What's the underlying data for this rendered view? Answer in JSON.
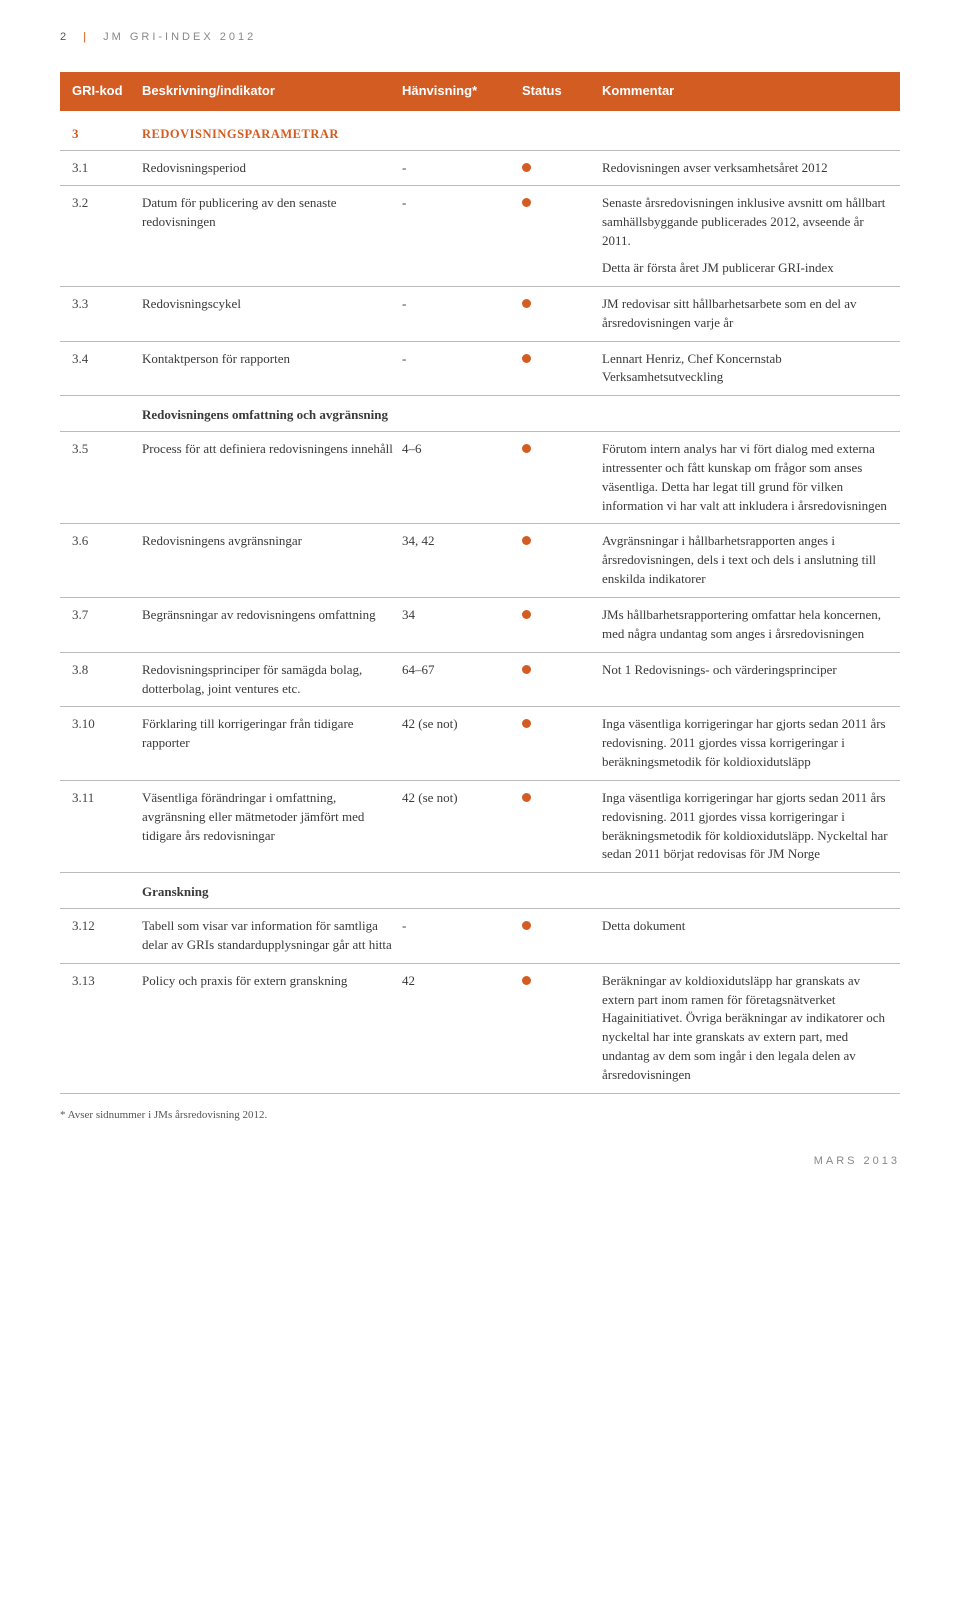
{
  "page": {
    "header_num": "2",
    "header_text": "JM GRI-INDEX 2012",
    "footer": "MARS 2013"
  },
  "colors": {
    "accent": "#d35c23",
    "text": "#3a3a3a",
    "rule": "#bbbbbb",
    "muted": "#888888",
    "background": "#ffffff"
  },
  "columns": {
    "code": "GRI-kod",
    "desc": "Beskrivning/indikator",
    "ref": "Hänvisning*",
    "status": "Status",
    "comment": "Kommentar"
  },
  "section": {
    "code": "3",
    "title": "REDOVISNINGSPARAMETRAR"
  },
  "rows": [
    {
      "code": "3.1",
      "desc": "Redovisningsperiod",
      "ref": "-",
      "status": "full",
      "comment": "Redovisningen avser verksamhetsåret 2012"
    },
    {
      "code": "3.2",
      "desc": "Datum för publicering av den senaste redovisningen",
      "ref": "-",
      "status": "full",
      "comment": "Senaste årsredovisningen inklusive avsnitt om hållbart samhällsbyggande publicerades 2012, avseende år 2011.\nDetta är första året JM publicerar GRI-index"
    },
    {
      "code": "3.3",
      "desc": "Redovisningscykel",
      "ref": "-",
      "status": "full",
      "comment": "JM redovisar sitt hållbarhetsarbete som en del av årsredovisningen varje år"
    },
    {
      "code": "3.4",
      "desc": "Kontaktperson för rapporten",
      "ref": "-",
      "status": "full",
      "comment": "Lennart Henriz, Chef Koncernstab Verksamhetsutveckling"
    }
  ],
  "subheader1": "Redovisningens omfattning och avgränsning",
  "rows2": [
    {
      "code": "3.5",
      "desc": "Process för att definiera redovisningens innehåll",
      "ref": "4–6",
      "status": "full",
      "comment": "Förutom intern analys har vi fört dialog med externa intressenter och fått kunskap om frågor som anses väsentliga. Detta har legat till grund för vilken information vi har valt att inkludera i årsredovisningen"
    },
    {
      "code": "3.6",
      "desc": "Redovisningens avgränsningar",
      "ref": "34, 42",
      "status": "full",
      "comment": "Avgränsningar i hållbarhetsrapporten anges i årsredovisningen, dels i text och dels i anslutning till enskilda indikatorer"
    },
    {
      "code": "3.7",
      "desc": "Begränsningar av redovisningens omfattning",
      "ref": "34",
      "status": "full",
      "comment": "JMs hållbarhetsrapportering omfattar hela koncernen, med några undantag som anges i årsredovisningen"
    },
    {
      "code": "3.8",
      "desc": "Redovisningsprinciper för samägda bolag, dotterbolag, joint ventures etc.",
      "ref": "64–67",
      "status": "full",
      "comment": "Not 1 Redovisnings- och värderingsprinciper"
    },
    {
      "code": "3.10",
      "desc": "Förklaring till korrigeringar från tidigare rapporter",
      "ref": "42 (se not)",
      "status": "full",
      "comment": "Inga väsentliga korrigeringar har gjorts sedan 2011 års redovisning. 2011 gjordes vissa korrigeringar i beräkningsmetodik för koldioxidutsläpp"
    },
    {
      "code": "3.11",
      "desc": "Väsentliga förändringar i omfattning, avgränsning eller mätmetoder jämfört med tidigare års redovisningar",
      "ref": "42 (se not)",
      "status": "full",
      "comment": "Inga väsentliga korrigeringar har gjorts sedan 2011 års redovisning. 2011 gjordes vissa korrigeringar i beräkningsmetodik för koldioxidutsläpp. Nyckeltal har sedan 2011 börjat redovisas för JM Norge"
    }
  ],
  "subheader2": "Granskning",
  "rows3": [
    {
      "code": "3.12",
      "desc": "Tabell som visar var information för samtliga delar av GRIs standardupplysningar går att hitta",
      "ref": "-",
      "status": "full",
      "comment": "Detta dokument"
    },
    {
      "code": "3.13",
      "desc": "Policy och praxis för extern granskning",
      "ref": "42",
      "status": "full",
      "comment": "Beräkningar av koldioxidutsläpp har granskats av extern part inom ramen för företagsnätverket Hagainitiativet. Övriga beräkningar av indikatorer och nyckeltal har inte granskats av extern part, med undantag av dem som ingår i den legala delen av årsredovisningen"
    }
  ],
  "footnote": "* Avser sidnummer i JMs årsredovisning 2012."
}
